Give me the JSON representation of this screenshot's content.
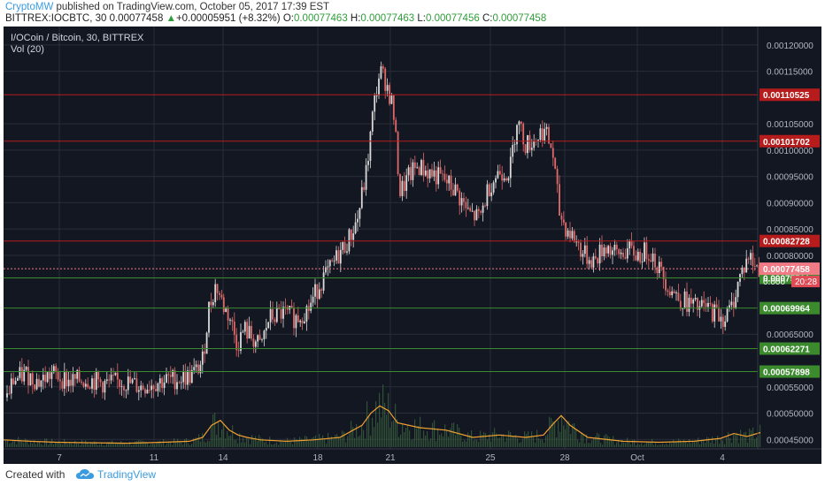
{
  "header": {
    "author": "CryptoMW",
    "published_text": "published on TradingView.com, October 05, 2017 17:39 EST",
    "symbol": "BITTREX:IOCBTC, 30",
    "last": "0.00077458",
    "change_arrow": "▲",
    "change": "+0.00005951 (+8.32%)",
    "o_label": "O:",
    "o": "0.00077463",
    "h_label": "H:",
    "h": "0.00077463",
    "l_label": "L:",
    "l": "0.00077456",
    "c_label": "C:",
    "c": "0.00077458"
  },
  "legend": {
    "title": "I/OCoin / Bitcoin, 30, BITTREX",
    "volume": "Vol (20)"
  },
  "footer": {
    "created_with": "Created with",
    "brand": "TradingView"
  },
  "colors": {
    "background": "#131722",
    "grid": "#2a2e39",
    "bull": "#d9d9d9",
    "bear": "#e06a6a",
    "resistance": "#b71c1c",
    "support": "#3b8a2e",
    "current": "#f07a85",
    "volume_ma": "#f0a030",
    "volume_bar": "#3d6b3d"
  },
  "chart_data": {
    "type": "candlestick",
    "title": "I/OCoin / Bitcoin, 30, BITTREX",
    "indicator": "Vol (20)",
    "x_tick_labels": [
      "7",
      "11",
      "14",
      "18",
      "21",
      "25",
      "28",
      "Oct",
      "4"
    ],
    "y_tick_labels": [
      "0.00120000",
      "0.00115000",
      "0.00105000",
      "0.00100000",
      "0.00095000",
      "0.00090000",
      "0.00085000",
      "0.00080000",
      "0.00065000",
      "0.00055000",
      "0.00050000",
      "0.00045000"
    ],
    "y_ticks": [
      0.0012,
      0.00115,
      0.00105,
      0.001,
      0.00095,
      0.0009,
      0.00085,
      0.0008,
      0.00065,
      0.00055,
      0.0005,
      0.00045
    ],
    "ylim": [
      0.000432,
      0.001235
    ],
    "resistance_lines": [
      {
        "value": 0.00110525,
        "label": "0.00110525"
      },
      {
        "value": 0.00101702,
        "label": "0.00101702"
      },
      {
        "value": 0.00082728,
        "label": "0.00082728"
      }
    ],
    "support_lines": [
      {
        "value": 0.00075701,
        "label": "0.00075701"
      },
      {
        "value": 0.00069964,
        "label": "0.00069964"
      },
      {
        "value": 0.00062271,
        "label": "0.00062271"
      },
      {
        "value": 0.00057898,
        "label": "0.00057898"
      }
    ],
    "current_price": {
      "value": 0.00077458,
      "label": "0.00077458",
      "countdown": "20:28",
      "partial_tick": "0.000"
    },
    "price_path": [
      [
        0,
        0.00051
      ],
      [
        10,
        0.00056
      ],
      [
        25,
        0.000575
      ],
      [
        40,
        0.00056
      ],
      [
        55,
        0.000575
      ],
      [
        75,
        0.00056
      ],
      [
        95,
        0.000565
      ],
      [
        115,
        0.000555
      ],
      [
        135,
        0.00056
      ],
      [
        155,
        0.00055
      ],
      [
        175,
        0.00056
      ],
      [
        195,
        0.000565
      ],
      [
        210,
        0.00057
      ],
      [
        218,
        0.00058
      ],
      [
        225,
        0.0006
      ],
      [
        232,
        0.0007
      ],
      [
        240,
        0.000745
      ],
      [
        248,
        0.000705
      ],
      [
        256,
        0.00068
      ],
      [
        264,
        0.00063
      ],
      [
        272,
        0.00066
      ],
      [
        280,
        0.000645
      ],
      [
        290,
        0.000625
      ],
      [
        300,
        0.00068
      ],
      [
        315,
        0.00069
      ],
      [
        330,
        0.00068
      ],
      [
        345,
        0.0007
      ],
      [
        358,
        0.00075
      ],
      [
        368,
        0.00077
      ],
      [
        378,
        0.0008
      ],
      [
        390,
        0.00083
      ],
      [
        400,
        0.00087
      ],
      [
        410,
        0.00096
      ],
      [
        418,
        0.00108
      ],
      [
        425,
        0.00115
      ],
      [
        432,
        0.00113
      ],
      [
        440,
        0.00108
      ],
      [
        448,
        0.00092
      ],
      [
        458,
        0.00095
      ],
      [
        468,
        0.00097
      ],
      [
        478,
        0.00096
      ],
      [
        490,
        0.00095
      ],
      [
        500,
        0.00094
      ],
      [
        512,
        0.00092
      ],
      [
        525,
        0.00088
      ],
      [
        538,
        0.00087
      ],
      [
        548,
        0.00093
      ],
      [
        560,
        0.00096
      ],
      [
        572,
        0.00096
      ],
      [
        580,
        0.00106
      ],
      [
        590,
        0.00101
      ],
      [
        600,
        0.00102
      ],
      [
        610,
        0.00104
      ],
      [
        620,
        0.001
      ],
      [
        628,
        0.00088
      ],
      [
        636,
        0.00085
      ],
      [
        646,
        0.00083
      ],
      [
        656,
        0.0008
      ],
      [
        668,
        0.00079
      ],
      [
        680,
        0.00082
      ],
      [
        692,
        0.0008
      ],
      [
        705,
        0.00081
      ],
      [
        718,
        0.0008
      ],
      [
        730,
        0.00081
      ],
      [
        742,
        0.00077
      ],
      [
        752,
        0.00074
      ],
      [
        762,
        0.00072
      ],
      [
        772,
        0.00071
      ],
      [
        782,
        0.0007
      ],
      [
        795,
        0.0007
      ],
      [
        805,
        0.00069
      ],
      [
        815,
        0.00068
      ],
      [
        822,
        0.0007
      ],
      [
        832,
        0.00076
      ],
      [
        842,
        0.0008
      ],
      [
        848,
        0.00078
      ],
      [
        855,
        0.000775
      ]
    ],
    "volume_ma_path": [
      [
        0,
        0.15
      ],
      [
        30,
        0.12
      ],
      [
        60,
        0.1
      ],
      [
        100,
        0.09
      ],
      [
        140,
        0.08
      ],
      [
        180,
        0.1
      ],
      [
        210,
        0.12
      ],
      [
        225,
        0.2
      ],
      [
        235,
        0.45
      ],
      [
        245,
        0.55
      ],
      [
        255,
        0.35
      ],
      [
        265,
        0.25
      ],
      [
        275,
        0.2
      ],
      [
        290,
        0.15
      ],
      [
        320,
        0.12
      ],
      [
        350,
        0.15
      ],
      [
        380,
        0.2
      ],
      [
        405,
        0.45
      ],
      [
        415,
        0.7
      ],
      [
        425,
        0.85
      ],
      [
        435,
        0.75
      ],
      [
        445,
        0.5
      ],
      [
        470,
        0.4
      ],
      [
        500,
        0.35
      ],
      [
        530,
        0.2
      ],
      [
        560,
        0.25
      ],
      [
        590,
        0.2
      ],
      [
        610,
        0.25
      ],
      [
        622,
        0.5
      ],
      [
        630,
        0.65
      ],
      [
        640,
        0.45
      ],
      [
        660,
        0.2
      ],
      [
        700,
        0.12
      ],
      [
        740,
        0.1
      ],
      [
        780,
        0.12
      ],
      [
        810,
        0.18
      ],
      [
        825,
        0.28
      ],
      [
        840,
        0.22
      ],
      [
        855,
        0.3
      ]
    ]
  }
}
